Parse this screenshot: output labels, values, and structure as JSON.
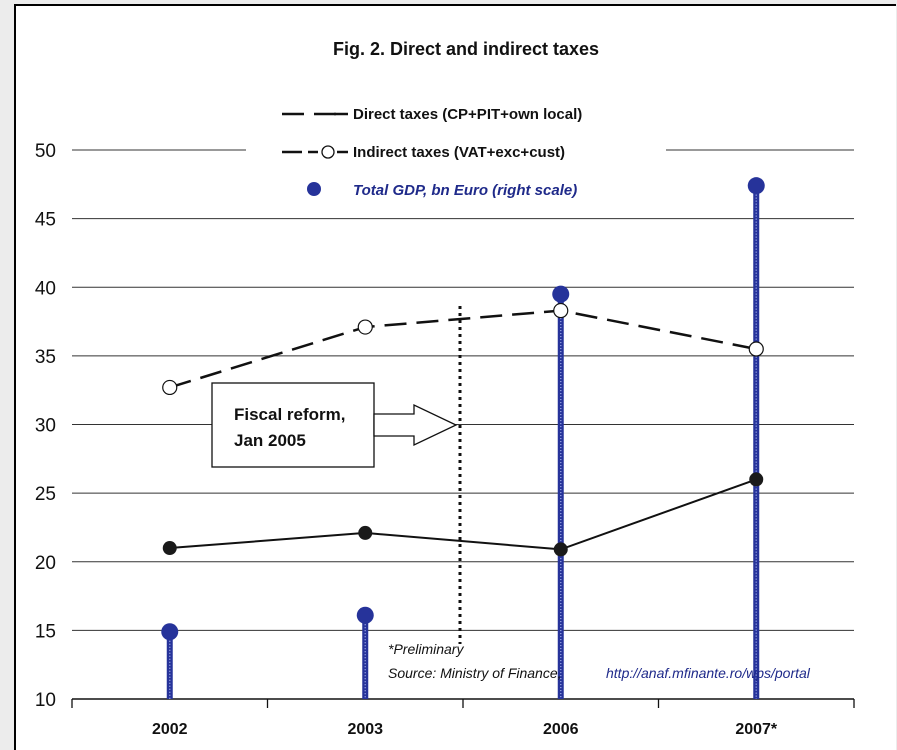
{
  "chart_data": {
    "type": "line",
    "title": "Fig. 2. Direct and indirect taxes",
    "categories": [
      "2002",
      "2003",
      "2006",
      "2007*"
    ],
    "yticks": [
      10,
      15,
      20,
      25,
      30,
      35,
      40,
      45,
      50
    ],
    "ylim": [
      10,
      50
    ],
    "grid": true,
    "legend_position": "top",
    "series": [
      {
        "name": "Direct taxes (CP+PIT+own local)",
        "style": "solid",
        "marker": "filled-black-circle",
        "values": [
          21.0,
          22.1,
          20.9,
          26.0
        ]
      },
      {
        "name": "Indirect taxes (VAT+exc+cust)",
        "style": "dashed",
        "marker": "open-circle",
        "values": [
          32.7,
          37.1,
          38.3,
          35.5
        ]
      },
      {
        "name": "Total GDP, bn Euro (right scale)",
        "style": "stem",
        "marker": "filled-blue-circle",
        "color": "#26339a",
        "values": [
          14.9,
          16.1,
          39.5,
          47.4
        ]
      }
    ],
    "annotation": {
      "text_lines": [
        "Fiscal reform,",
        "Jan 2005"
      ],
      "marker": "vertical-dotted-line"
    },
    "notes": {
      "line1": "*Preliminary",
      "line2": "Source: Ministry of Finance,",
      "link": "http://anaf.mfinante.ro/wps/portal"
    }
  }
}
